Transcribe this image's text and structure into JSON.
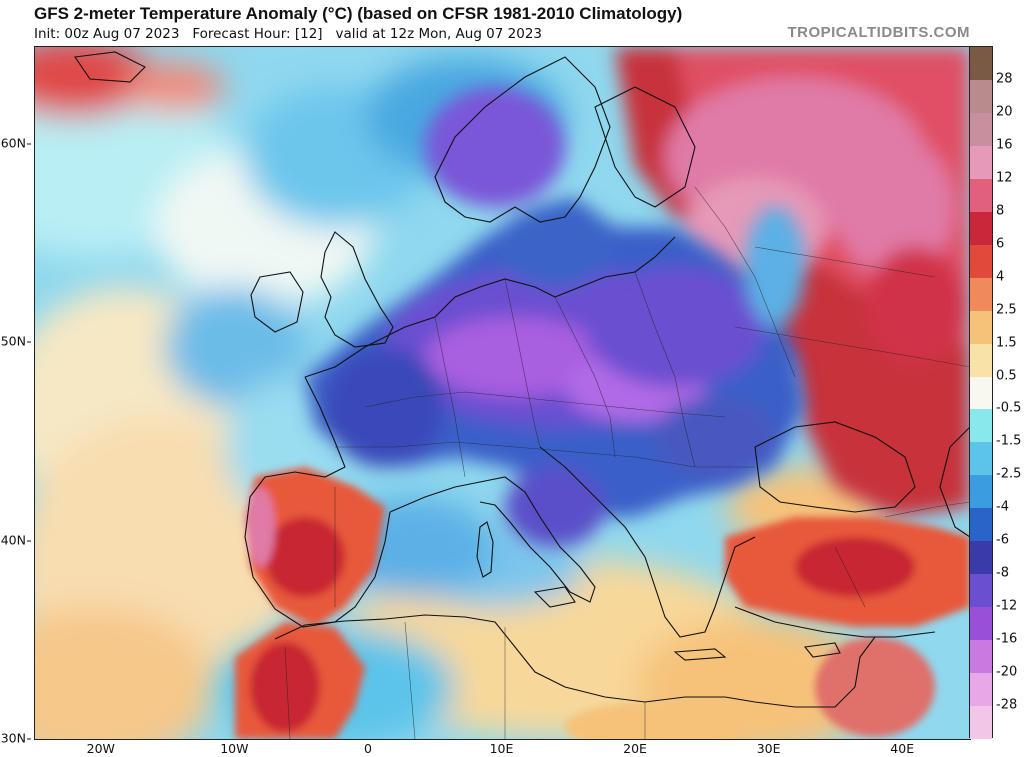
{
  "header": {
    "title": "GFS 2-meter Temperature Anomaly (°C) (based on CFSR 1981-2010 Climatology)",
    "subtitle": "Init: 00z Aug 07 2023   Forecast Hour: [12]   valid at 12z Mon, Aug 07 2023",
    "source": "TROPICALTIDBITS.COM"
  },
  "map": {
    "lat_labels": [
      {
        "text": "60N",
        "lat": 60
      },
      {
        "text": "50N",
        "lat": 50
      },
      {
        "text": "40N",
        "lat": 40
      },
      {
        "text": "30N",
        "lat": 30
      }
    ],
    "lon_labels": [
      {
        "text": "20W",
        "lon": -20
      },
      {
        "text": "10W",
        "lon": -10
      },
      {
        "text": "0",
        "lon": 0
      },
      {
        "text": "10E",
        "lon": 10
      },
      {
        "text": "20E",
        "lon": 20
      },
      {
        "text": "30E",
        "lon": 30
      },
      {
        "text": "40E",
        "lon": 40
      }
    ],
    "colors": {
      "ocean_base": "#8fd8ee",
      "warm_strong": "#c8323a",
      "warm_pink": "#e07aa6",
      "cold_purple": "#6a4fd0",
      "cold_violet": "#b06ae6",
      "neutral": "#f6ecd6",
      "coast": "#111111"
    }
  },
  "colorbar": {
    "labels": [
      "28",
      "20",
      "16",
      "12",
      "8",
      "6",
      "4",
      "2.5",
      "1.5",
      "0.5",
      "-0.5",
      "-1.5",
      "-2.5",
      "-4",
      "-6",
      "-8",
      "-12",
      "-16",
      "-20",
      "-28"
    ],
    "colors": [
      "#7a5a45",
      "#b88c8c",
      "#c8909e",
      "#e699b8",
      "#e0607e",
      "#c8283a",
      "#e04a3a",
      "#f08a5a",
      "#f6c27a",
      "#f8e2a8",
      "#f8f8f0",
      "#88e8ec",
      "#5cc4ea",
      "#3c9ce0",
      "#2a64c8",
      "#3a3aa8",
      "#6a4fd0",
      "#9a4fd8",
      "#c87ae0",
      "#e8a8e8",
      "#f2c6e6"
    ]
  }
}
